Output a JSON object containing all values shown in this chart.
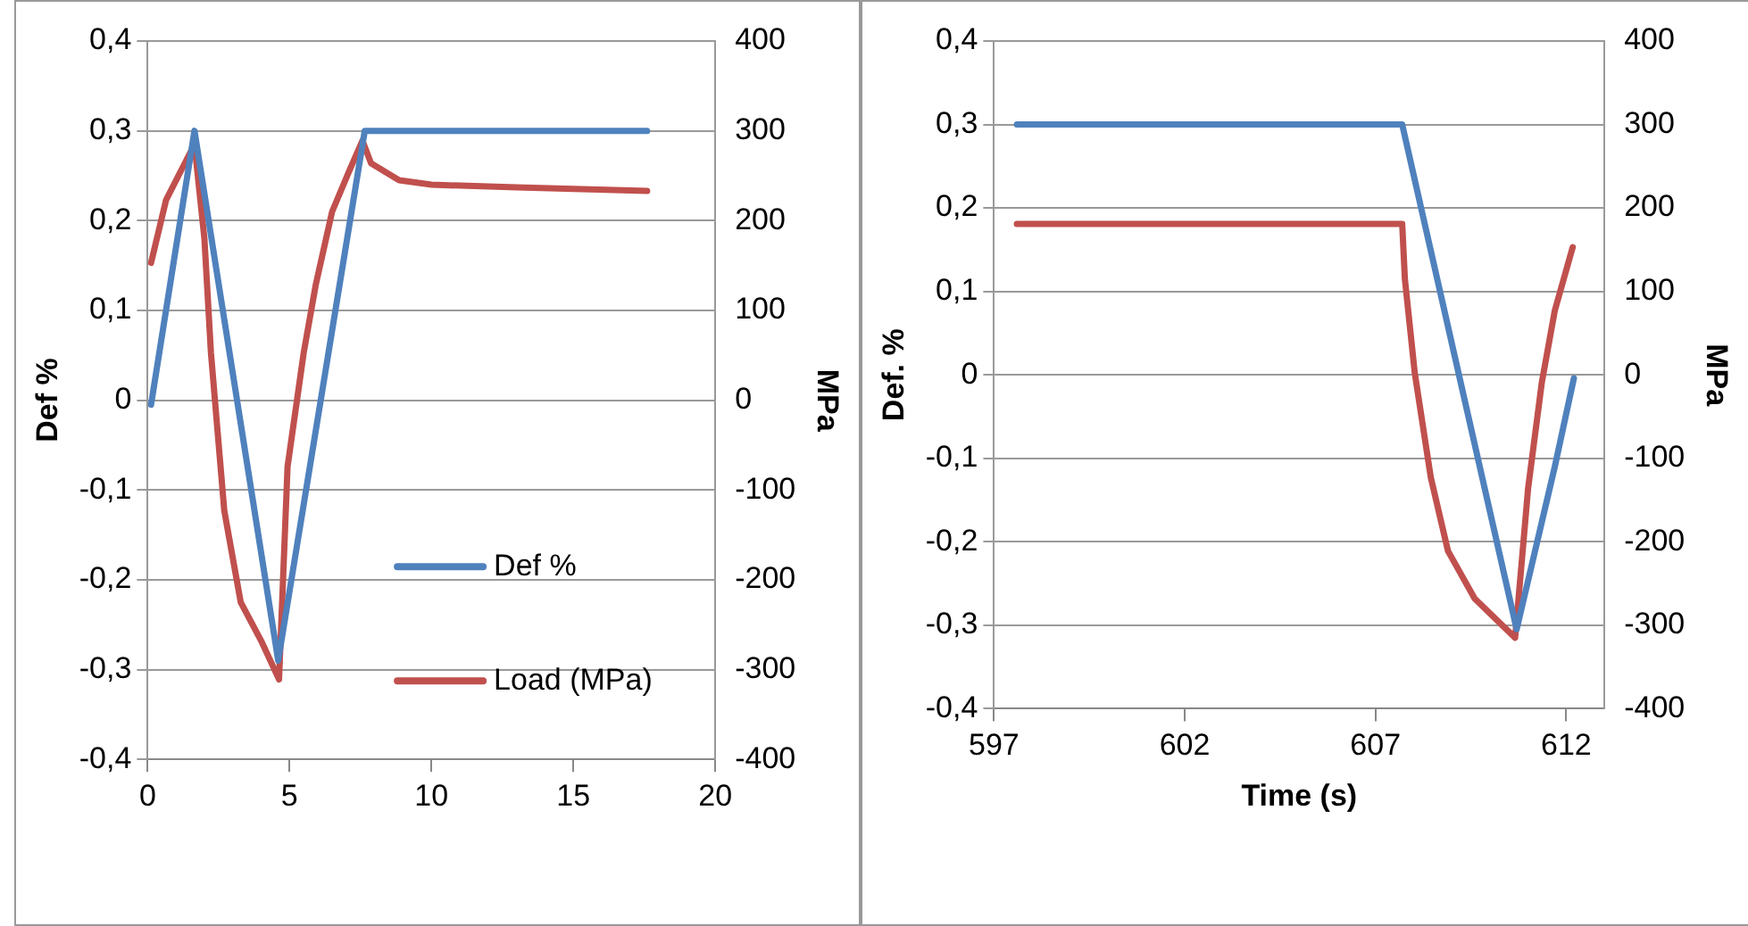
{
  "chart_data": [
    {
      "type": "line",
      "ylabel": "Def %",
      "y2label": "MPa",
      "legend": "bottom right",
      "grid": "y",
      "marker": "none",
      "line_style": "solid",
      "xlim": [
        0,
        20
      ],
      "xticks": [
        0,
        5,
        10,
        15,
        20
      ],
      "ylim": [
        -0.4,
        0.4
      ],
      "yticks": [
        {
          "value": -0.4,
          "label": "-0,4"
        },
        {
          "value": -0.3,
          "label": "-0,3"
        },
        {
          "value": -0.2,
          "label": "-0,2"
        },
        {
          "value": -0.1,
          "label": "-0,1"
        },
        0,
        {
          "value": 0.1,
          "label": "0,1"
        },
        {
          "value": 0.2,
          "label": "0,2"
        },
        {
          "value": 0.3,
          "label": "0,3"
        },
        {
          "value": 0.4,
          "label": "0,4"
        }
      ],
      "y2lim": [
        -400,
        400
      ],
      "y2ticks": [
        -400,
        -300,
        -200,
        -100,
        0,
        100,
        200,
        300,
        400
      ],
      "series": [
        {
          "name": "Def %",
          "color": "#4f81bd",
          "x": [
            0.12,
            1.65,
            4.6,
            7.65,
            10,
            12.5,
            15,
            17.6
          ],
          "values": [
            -0.005,
            0.3,
            -0.29,
            0.3,
            0.3,
            0.3,
            0.3,
            0.3
          ]
        },
        {
          "name": "Load (MPa)",
          "color": "#c0504d",
          "axis": "y2",
          "x": [
            0.12,
            0.65,
            1.65,
            2.0,
            2.23,
            2.7,
            3.28,
            4.0,
            4.63,
            4.93,
            5.5,
            5.92,
            6.5,
            7.1,
            7.57,
            7.87,
            8.86,
            10,
            13,
            17.6
          ],
          "values": [
            153,
            223,
            285,
            180,
            53,
            -123,
            -225,
            -268,
            -311,
            -74,
            53,
            128,
            210,
            255,
            289,
            264,
            245,
            240,
            237,
            233
          ]
        }
      ]
    },
    {
      "type": "line",
      "xlabel": "Time (s)",
      "ylabel": "Def. %",
      "y2label": "MPa",
      "grid": "y",
      "marker": "none",
      "line_style": "solid",
      "xlim": [
        597,
        613
      ],
      "xticks": [
        597,
        602,
        607,
        612
      ],
      "ylim": [
        -0.4,
        0.4
      ],
      "yticks": [
        {
          "value": -0.4,
          "label": "-0,4"
        },
        {
          "value": -0.3,
          "label": "-0,3"
        },
        {
          "value": -0.2,
          "label": "-0,2"
        },
        {
          "value": -0.1,
          "label": "-0,1"
        },
        0,
        {
          "value": 0.1,
          "label": "0,1"
        },
        {
          "value": 0.2,
          "label": "0,2"
        },
        {
          "value": 0.3,
          "label": "0,3"
        },
        {
          "value": 0.4,
          "label": "0,4"
        }
      ],
      "y2lim": [
        -400,
        400
      ],
      "y2ticks": [
        -400,
        -300,
        -200,
        -100,
        0,
        100,
        200,
        300,
        400
      ],
      "series": [
        {
          "color": "#4f81bd",
          "x": [
            597.6,
            600,
            603,
            606,
            607.7,
            610.7,
            611.7,
            612.2
          ],
          "values": [
            0.3,
            0.3,
            0.3,
            0.3,
            0.3,
            -0.305,
            -0.11,
            -0.004
          ]
        },
        {
          "color": "#c0504d",
          "axis": "y2",
          "x": [
            597.6,
            600,
            603,
            606,
            607.7,
            607.77,
            608.03,
            608.45,
            608.9,
            609.6,
            610.66,
            611.0,
            611.36,
            611.7,
            612.17
          ],
          "values": [
            181,
            181,
            181,
            181,
            181,
            115,
            2,
            -123,
            -211,
            -268,
            -315,
            -136,
            -9,
            77,
            153
          ]
        }
      ]
    }
  ]
}
